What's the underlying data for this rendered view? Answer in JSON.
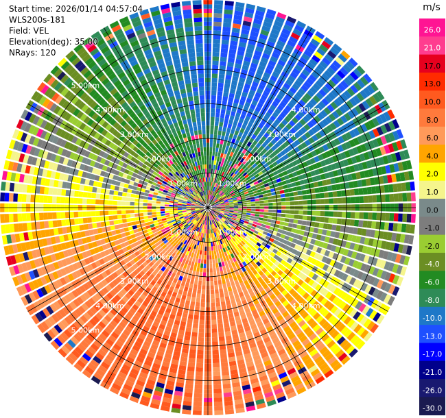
{
  "header": {
    "start_time": "Start time: 2026/01/14 04:57:04",
    "site": "WLS200s-181",
    "field": "Field: VEL",
    "elevation": "Elevation(deg): 35.00",
    "nrays": "NRays: 120"
  },
  "chart_data": {
    "type": "polar-ppi",
    "field": "VEL",
    "units": "m/s",
    "nrays": 120,
    "elevation_deg": 35.0,
    "range_rings_km": [
      1.0,
      2.0,
      3.0,
      4.0,
      5.0
    ],
    "ring_labels": [
      "1.00km",
      "2.00km",
      "3.00km",
      "4.00km",
      "5.00km"
    ],
    "max_range_km": 6.0,
    "colorbar": {
      "label": "m/s",
      "ticks": [
        "26.0",
        "21.0",
        "17.0",
        "13.0",
        "10.0",
        "8.0",
        "6.0",
        "4.0",
        "2.0",
        "1.0",
        "0.0",
        "-1.0",
        "-2.0",
        "-4.0",
        "-6.0",
        "-8.0",
        "-10.0",
        "-13.0",
        "-17.0",
        "-21.0",
        "-26.0",
        "-30.0"
      ],
      "colors": [
        "#ff1493",
        "#ff3d8f",
        "#e6001e",
        "#ff2b00",
        "#ff5a1f",
        "#ff7a3c",
        "#ff9a5a",
        "#ffa500",
        "#ffff00",
        "#f5f58c",
        "#7a8a8a",
        "#7d7d7d",
        "#9acd32",
        "#6b8e23",
        "#228b22",
        "#2e8b57",
        "#1e78c8",
        "#1e50ff",
        "#0000ff",
        "#00008b",
        "#191970",
        "#1a1a50"
      ]
    },
    "grid": true,
    "wind_pattern": "receding (positive, warm) toward south, approaching (negative, green/blue) toward north; noisy near center"
  }
}
